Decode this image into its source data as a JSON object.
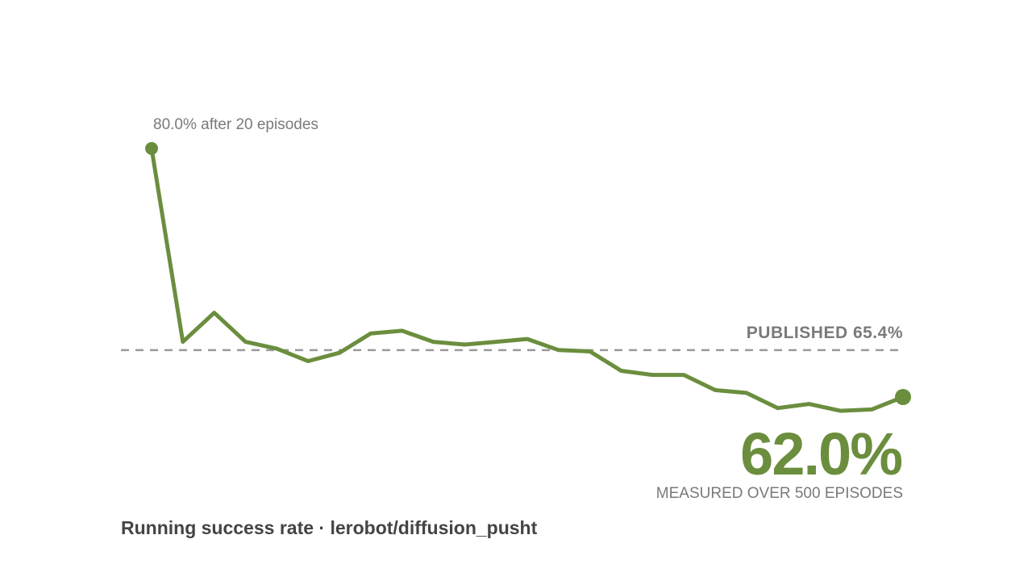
{
  "colors": {
    "series": "#6b8e3e",
    "reference": "#9a9a9a",
    "muted_text": "#7a7a7a",
    "title_text": "#444444",
    "background": "#ffffff"
  },
  "chart_data": {
    "type": "line",
    "title": "Running success rate · lerobot/diffusion_pusht",
    "xlabel": "",
    "ylabel": "",
    "grid": false,
    "legend": "none",
    "xlim": [
      20,
      500
    ],
    "ylim": [
      55,
      85
    ],
    "x": [
      20,
      40,
      60,
      80,
      100,
      120,
      140,
      160,
      180,
      200,
      220,
      240,
      260,
      280,
      300,
      320,
      340,
      360,
      380,
      400,
      420,
      440,
      460,
      480,
      500
    ],
    "series": [
      {
        "values": [
          80.0,
          66.0,
          68.1,
          66.0,
          65.5,
          64.6,
          65.2,
          66.6,
          66.8,
          66.0,
          65.8,
          66.0,
          66.2,
          65.4,
          65.3,
          63.9,
          63.6,
          63.6,
          62.5,
          62.3,
          61.2,
          61.5,
          61.0,
          61.1,
          62.0
        ]
      }
    ],
    "reference_line": {
      "value": 65.4,
      "label": "PUBLISHED 65.4%"
    },
    "start_annotation": "80.0% after 20 episodes",
    "end_value_label": "62.0%",
    "end_caption": "MEASURED OVER 500 EPISODES"
  }
}
